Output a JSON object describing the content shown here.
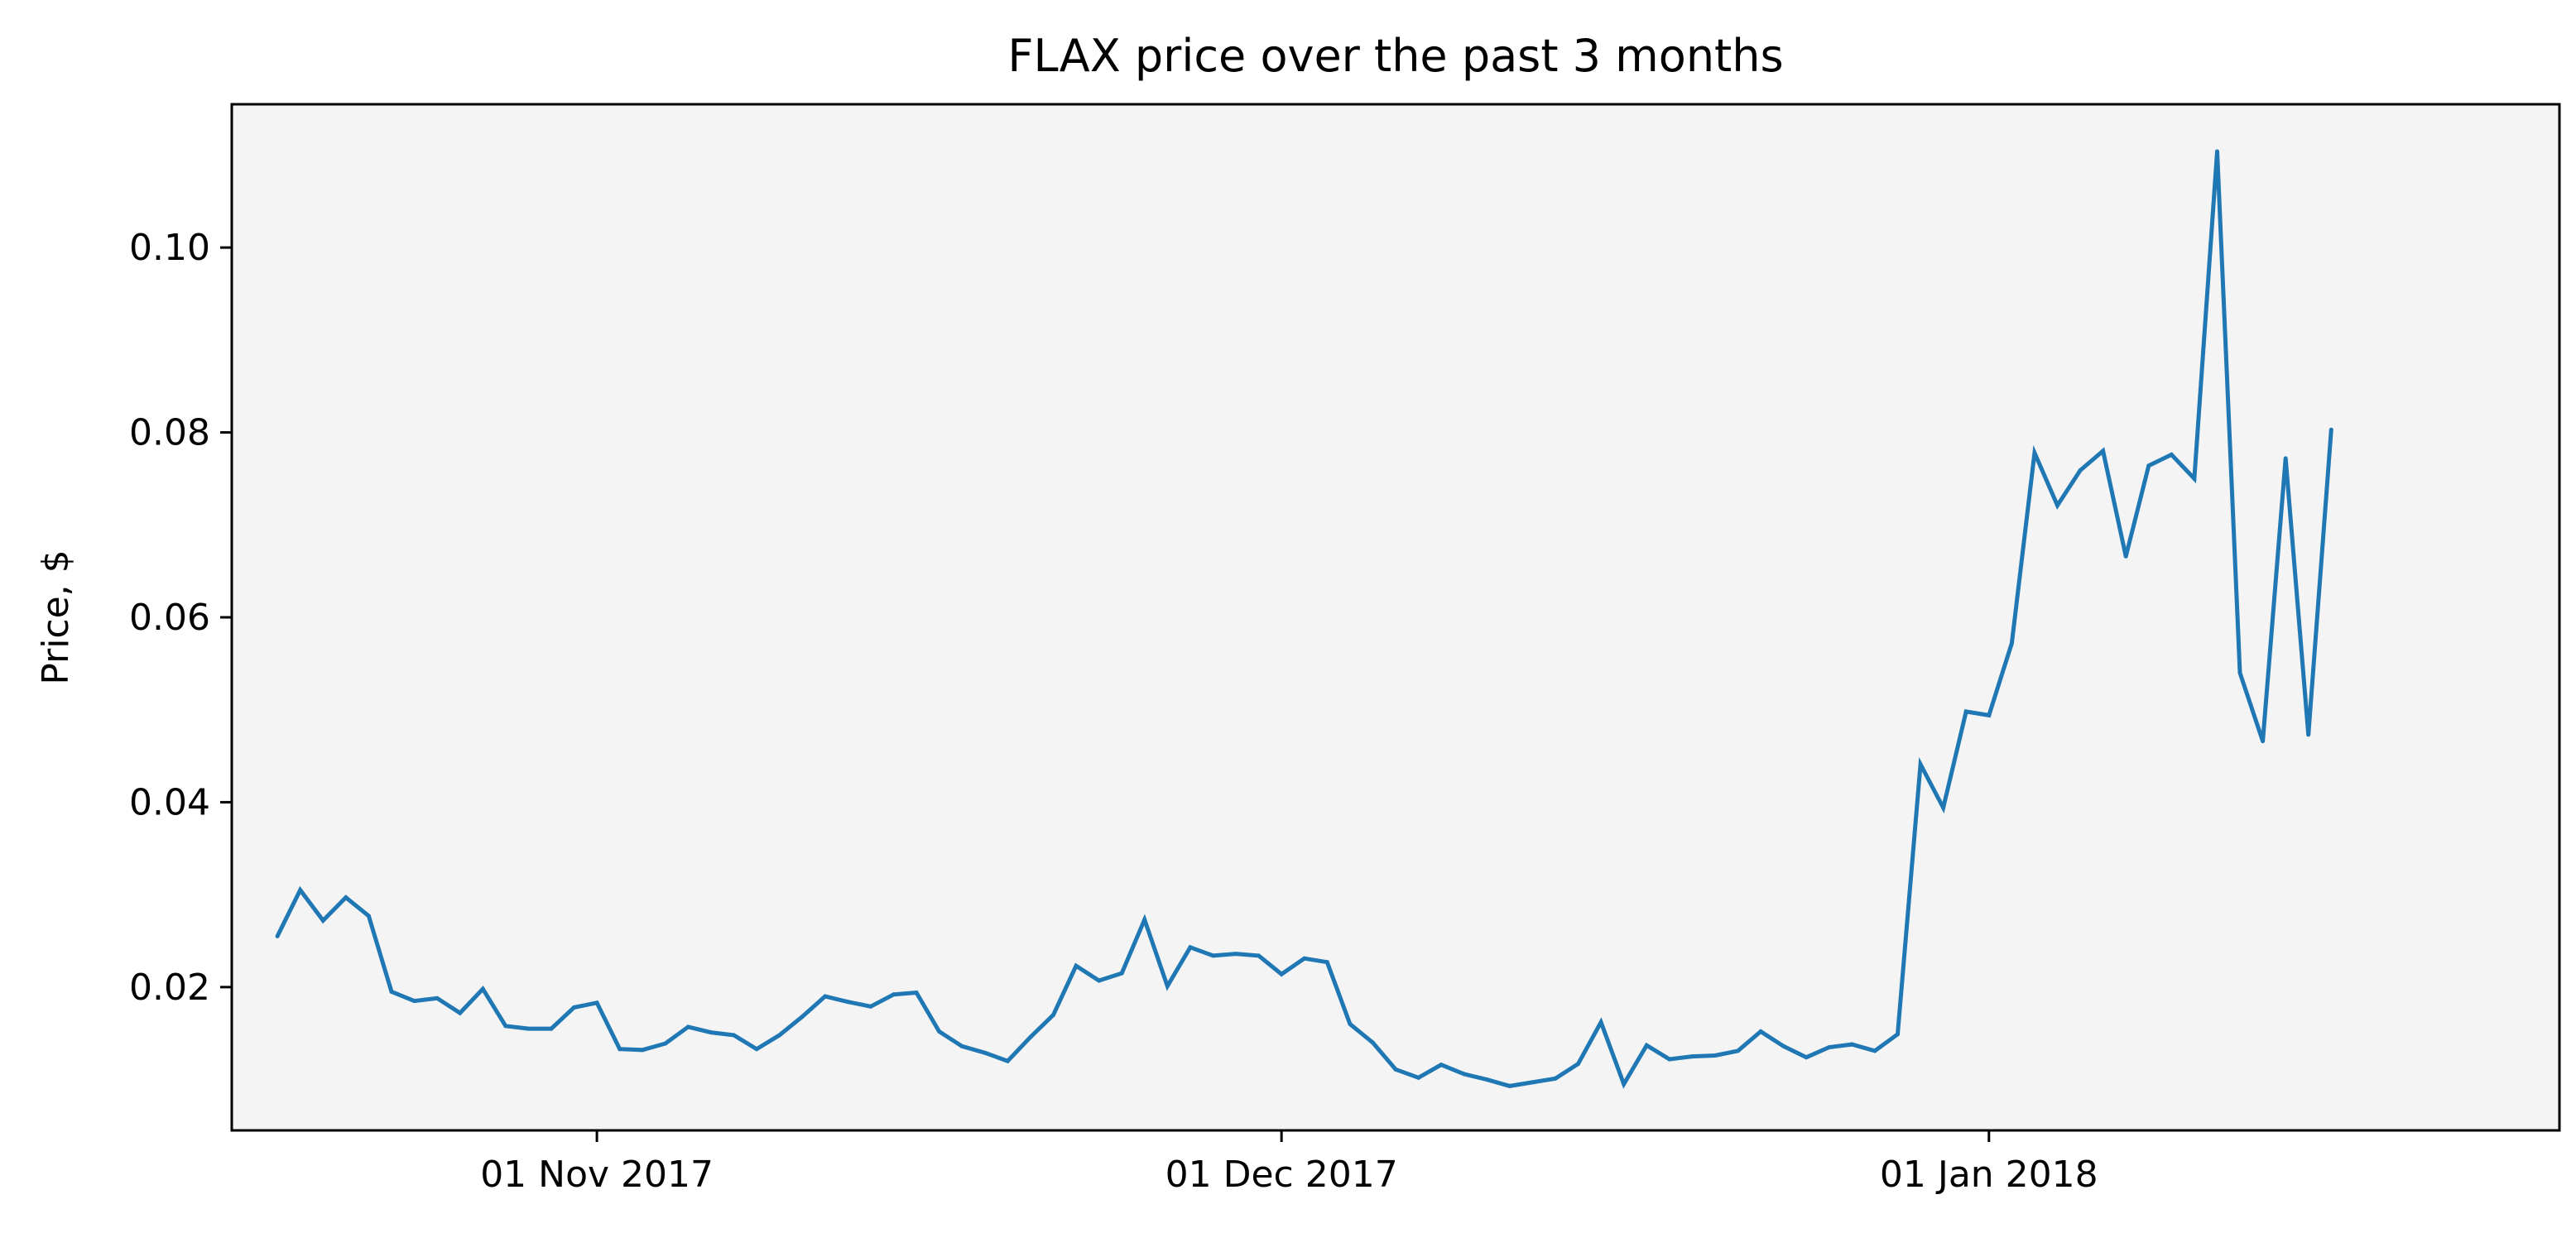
{
  "chart_data": {
    "type": "line",
    "title": "FLAX price over the past 3 months",
    "xlabel": "",
    "ylabel": "Price, $",
    "x_range": [
      "2017-10-16",
      "2018-01-26"
    ],
    "ylim": [
      0.0045,
      0.1155
    ],
    "x_ticks": [
      {
        "date": "2017-11-01",
        "label": "01 Nov 2017"
      },
      {
        "date": "2017-12-01",
        "label": "01 Dec 2017"
      },
      {
        "date": "2018-01-01",
        "label": "01 Jan 2018"
      }
    ],
    "y_ticks": [
      {
        "value": 0.02,
        "label": "0.02"
      },
      {
        "value": 0.04,
        "label": "0.04"
      },
      {
        "value": 0.06,
        "label": "0.06"
      },
      {
        "value": 0.08,
        "label": "0.08"
      },
      {
        "value": 0.1,
        "label": "0.10"
      }
    ],
    "grid": false,
    "plot_background": "#f4f4f4",
    "series": [
      {
        "color": "#1f77b4",
        "points": [
          [
            "2017-10-18",
            0.0255
          ],
          [
            "2017-10-19",
            0.0305
          ],
          [
            "2017-10-20",
            0.0272
          ],
          [
            "2017-10-21",
            0.0297
          ],
          [
            "2017-10-22",
            0.0277
          ],
          [
            "2017-10-23",
            0.0195
          ],
          [
            "2017-10-24",
            0.0185
          ],
          [
            "2017-10-25",
            0.0188
          ],
          [
            "2017-10-26",
            0.0172
          ],
          [
            "2017-10-27",
            0.0198
          ],
          [
            "2017-10-28",
            0.0158
          ],
          [
            "2017-10-29",
            0.0155
          ],
          [
            "2017-10-30",
            0.0155
          ],
          [
            "2017-10-31",
            0.0178
          ],
          [
            "2017-11-01",
            0.0183
          ],
          [
            "2017-11-02",
            0.0133
          ],
          [
            "2017-11-03",
            0.0132
          ],
          [
            "2017-11-04",
            0.0139
          ],
          [
            "2017-11-05",
            0.0157
          ],
          [
            "2017-11-06",
            0.0151
          ],
          [
            "2017-11-07",
            0.0148
          ],
          [
            "2017-11-08",
            0.0133
          ],
          [
            "2017-11-09",
            0.0148
          ],
          [
            "2017-11-10",
            0.0168
          ],
          [
            "2017-11-11",
            0.019
          ],
          [
            "2017-11-12",
            0.0184
          ],
          [
            "2017-11-13",
            0.0179
          ],
          [
            "2017-11-14",
            0.0192
          ],
          [
            "2017-11-15",
            0.0194
          ],
          [
            "2017-11-16",
            0.0152
          ],
          [
            "2017-11-17",
            0.0136
          ],
          [
            "2017-11-18",
            0.0129
          ],
          [
            "2017-11-19",
            0.012
          ],
          [
            "2017-11-20",
            0.0146
          ],
          [
            "2017-11-21",
            0.017
          ],
          [
            "2017-11-22",
            0.0223
          ],
          [
            "2017-11-23",
            0.0207
          ],
          [
            "2017-11-24",
            0.0215
          ],
          [
            "2017-11-25",
            0.0273
          ],
          [
            "2017-11-26",
            0.0201
          ],
          [
            "2017-11-27",
            0.0243
          ],
          [
            "2017-11-28",
            0.0234
          ],
          [
            "2017-11-29",
            0.0236
          ],
          [
            "2017-11-30",
            0.0234
          ],
          [
            "2017-12-01",
            0.0214
          ],
          [
            "2017-12-02",
            0.0231
          ],
          [
            "2017-12-03",
            0.0227
          ],
          [
            "2017-12-04",
            0.016
          ],
          [
            "2017-12-05",
            0.014
          ],
          [
            "2017-12-06",
            0.0111
          ],
          [
            "2017-12-07",
            0.0102
          ],
          [
            "2017-12-08",
            0.0116
          ],
          [
            "2017-12-09",
            0.0106
          ],
          [
            "2017-12-10",
            0.01
          ],
          [
            "2017-12-11",
            0.0093
          ],
          [
            "2017-12-12",
            0.0097
          ],
          [
            "2017-12-13",
            0.0101
          ],
          [
            "2017-12-14",
            0.0117
          ],
          [
            "2017-12-15",
            0.0162
          ],
          [
            "2017-12-16",
            0.0095
          ],
          [
            "2017-12-17",
            0.0137
          ],
          [
            "2017-12-18",
            0.0122
          ],
          [
            "2017-12-19",
            0.0125
          ],
          [
            "2017-12-20",
            0.0126
          ],
          [
            "2017-12-21",
            0.0131
          ],
          [
            "2017-12-22",
            0.0152
          ],
          [
            "2017-12-23",
            0.0136
          ],
          [
            "2017-12-24",
            0.0124
          ],
          [
            "2017-12-25",
            0.0135
          ],
          [
            "2017-12-26",
            0.0138
          ],
          [
            "2017-12-27",
            0.0131
          ],
          [
            "2017-12-28",
            0.0149
          ],
          [
            "2017-12-29",
            0.0441
          ],
          [
            "2017-12-30",
            0.0394
          ],
          [
            "2017-12-31",
            0.0498
          ],
          [
            "2018-01-01",
            0.0494
          ],
          [
            "2018-01-02",
            0.0572
          ],
          [
            "2018-01-03",
            0.0778
          ],
          [
            "2018-01-04",
            0.0721
          ],
          [
            "2018-01-05",
            0.0759
          ],
          [
            "2018-01-06",
            0.078
          ],
          [
            "2018-01-07",
            0.0666
          ],
          [
            "2018-01-08",
            0.0764
          ],
          [
            "2018-01-09",
            0.0776
          ],
          [
            "2018-01-10",
            0.075
          ],
          [
            "2018-01-11",
            0.1104
          ],
          [
            "2018-01-12",
            0.054
          ],
          [
            "2018-01-13",
            0.0466
          ],
          [
            "2018-01-14",
            0.0772
          ],
          [
            "2018-01-15",
            0.0473
          ],
          [
            "2018-01-16",
            0.0803
          ]
        ]
      }
    ]
  }
}
